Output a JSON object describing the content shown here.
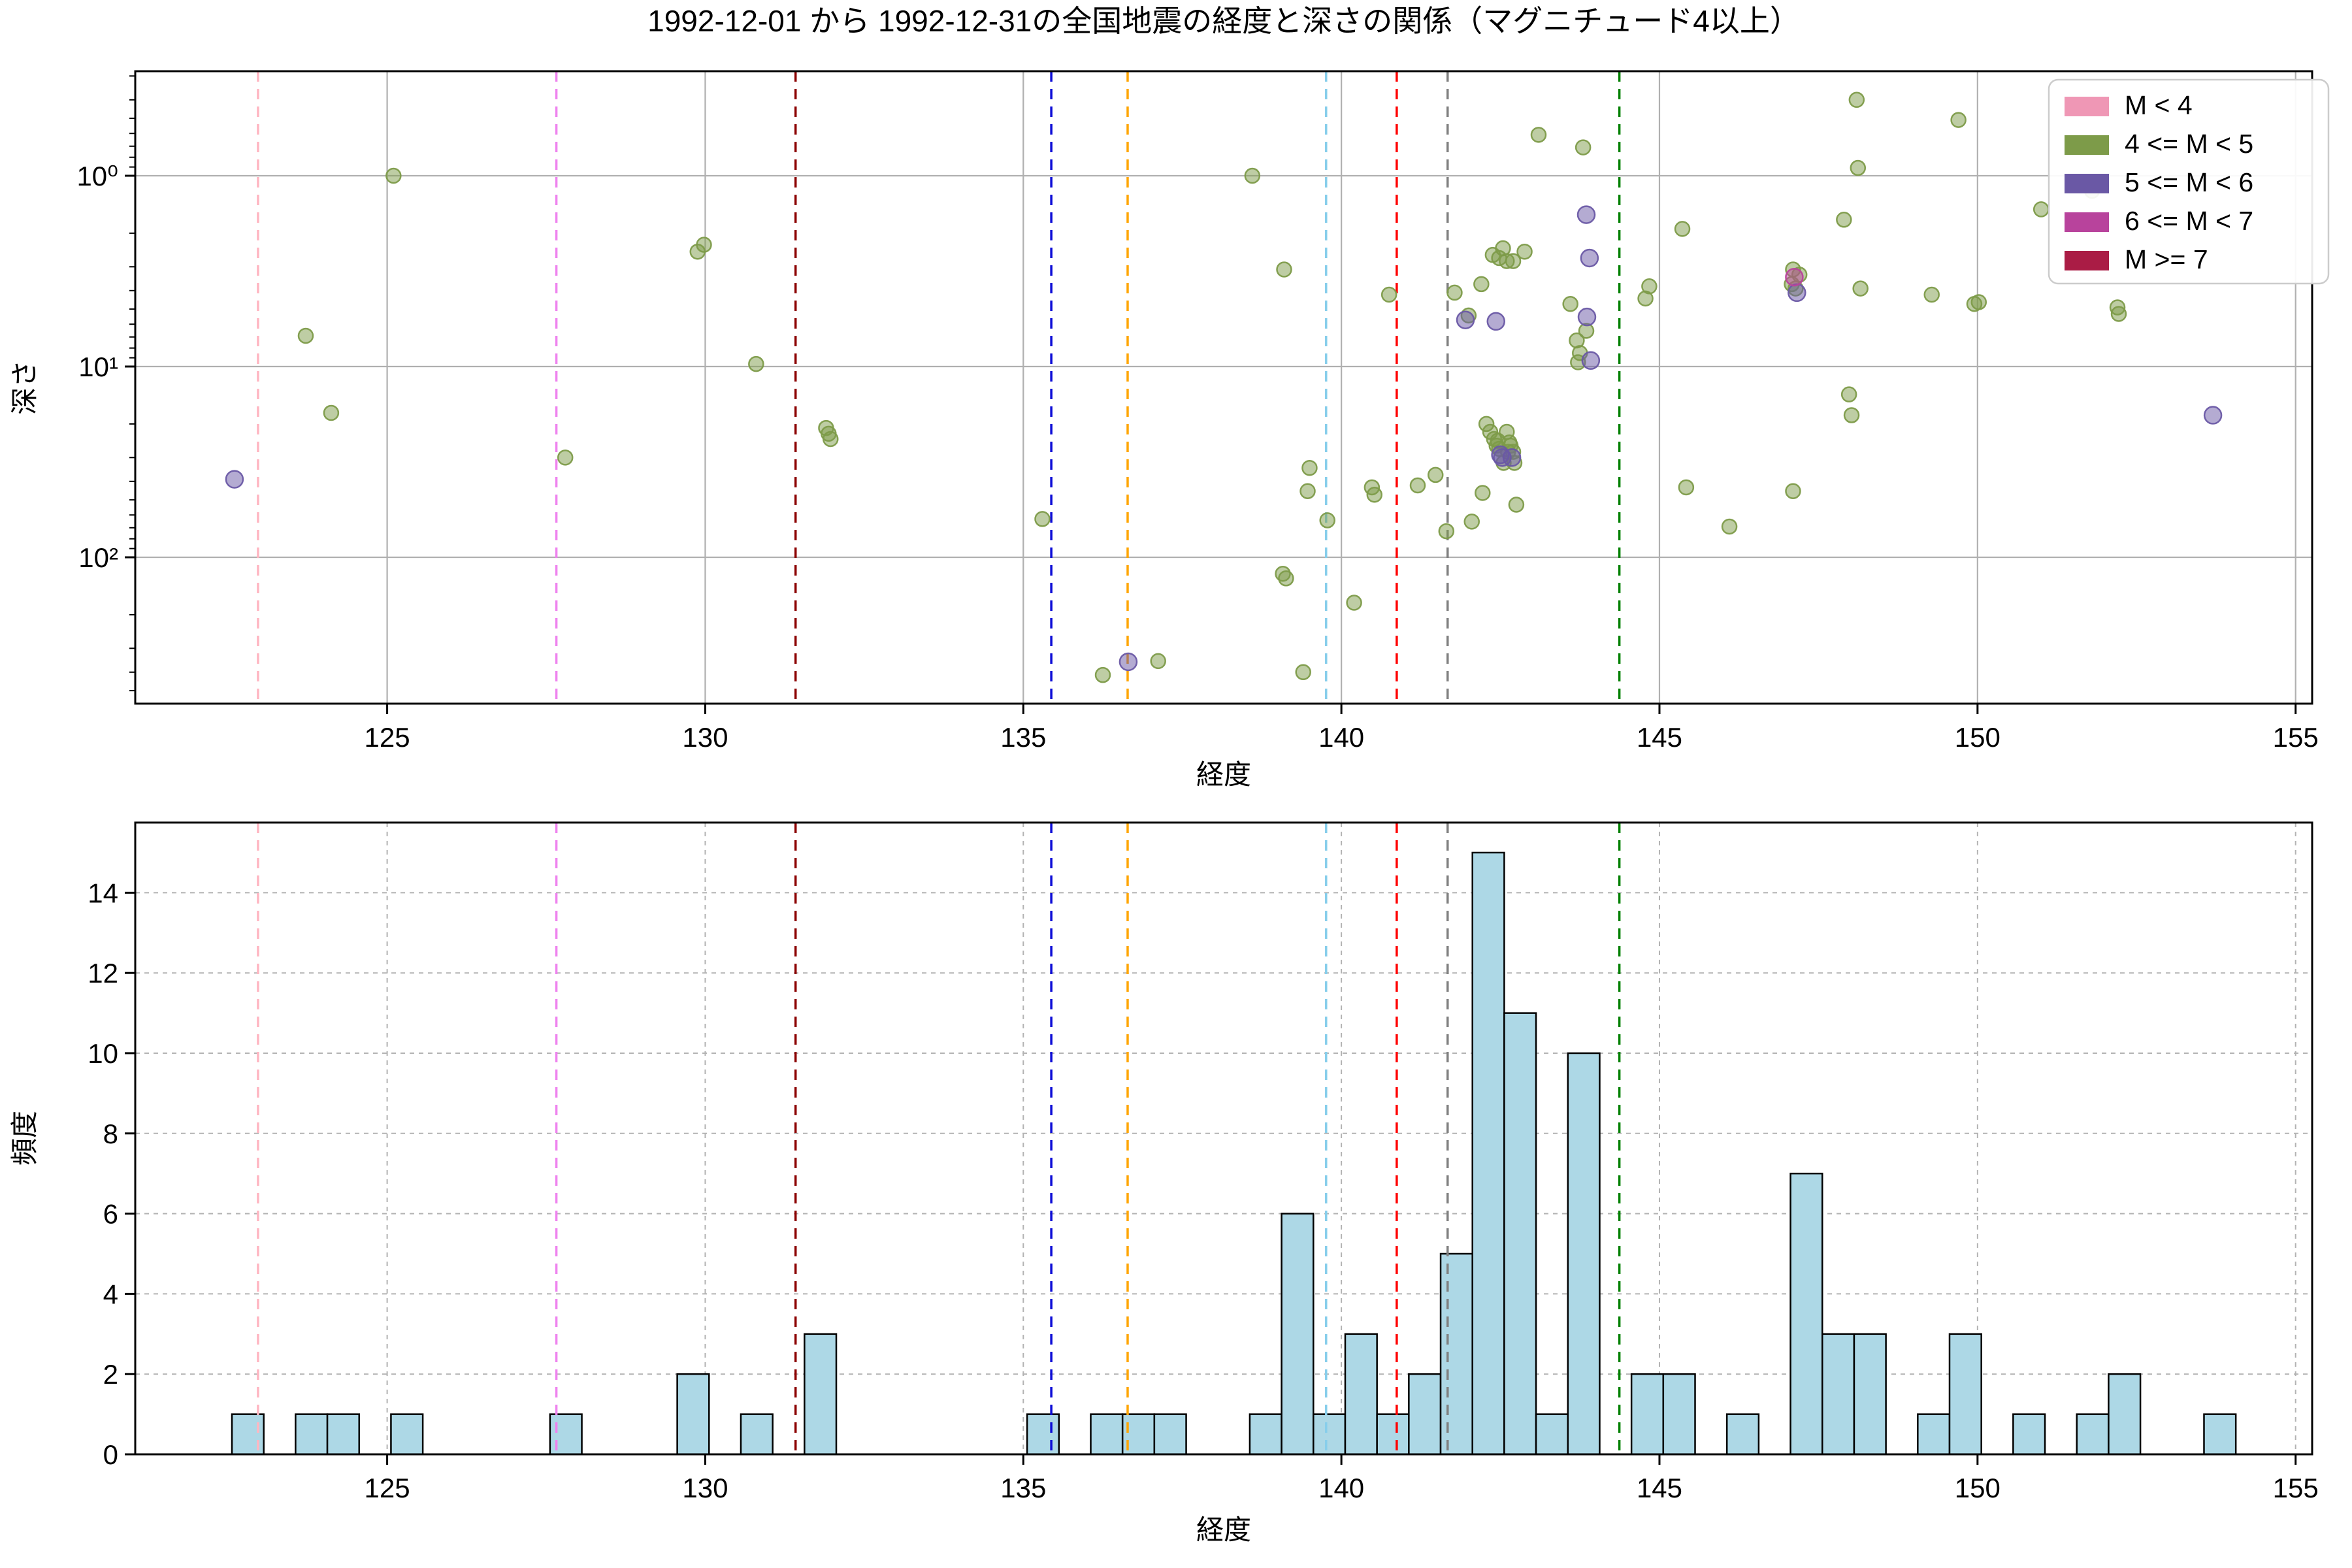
{
  "title": "1992-12-01 から 1992-12-31の全国地震の経度と深さの関係（マグニチュード4以上）",
  "axes": {
    "top": {
      "xlabel": "経度",
      "ylabel": "深さ",
      "xticks": [
        125,
        130,
        135,
        140,
        145,
        150,
        155
      ],
      "ytick_labels": [
        "10⁰",
        "10¹",
        "10²"
      ],
      "ytick_values": [
        1,
        10,
        100
      ],
      "xlim": [
        121.04,
        155.26
      ],
      "ylim_depth": [
        0.283,
        585
      ],
      "yscale": "log-inverted",
      "grid": "solid"
    },
    "bottom": {
      "xlabel": "経度",
      "ylabel": "頻度",
      "xticks": [
        125,
        130,
        135,
        140,
        145,
        150,
        155
      ],
      "yticks": [
        0,
        2,
        4,
        6,
        8,
        10,
        12,
        14
      ],
      "ylim": [
        0,
        15.75
      ],
      "grid": "dashed"
    }
  },
  "legend": {
    "entries": [
      {
        "label": "M < 4",
        "color": "#ef97b5"
      },
      {
        "label": "4 <= M < 5",
        "color": "#7d9b49"
      },
      {
        "label": "5 <= M < 6",
        "color": "#6a58a5"
      },
      {
        "label": "6 <= M < 7",
        "color": "#b8439c"
      },
      {
        "label": "M >= 7",
        "color": "#aa1c45"
      }
    ]
  },
  "vlines": [
    {
      "lon": 122.97,
      "color": "#ffb6c1"
    },
    {
      "lon": 127.66,
      "color": "#ee82ee"
    },
    {
      "lon": 131.42,
      "color": "#8b0000"
    },
    {
      "lon": 135.44,
      "color": "#0b0bd6"
    },
    {
      "lon": 136.64,
      "color": "#ffa500"
    },
    {
      "lon": 139.76,
      "color": "#87ceeb"
    },
    {
      "lon": 140.87,
      "color": "#ff0000"
    },
    {
      "lon": 141.67,
      "color": "#7f7f7f"
    },
    {
      "lon": 144.37,
      "color": "#008000"
    }
  ],
  "chart_data": [
    {
      "type": "scatter",
      "title": "1992-12-01 から 1992-12-31の全国地震の経度と深さの関係（マグニチュード4以上）",
      "xlabel": "経度",
      "ylabel": "深さ",
      "xlim": [
        121.04,
        155.26
      ],
      "ylim": [
        0.283,
        585
      ],
      "series": [
        {
          "name": "M < 4",
          "color": "#ef97b5",
          "r": 11,
          "points": []
        },
        {
          "name": "4 <= M < 5",
          "color": "#7d9b49",
          "r": 11,
          "points": [
            [
              123.72,
              6.9
            ],
            [
              124.12,
              17.5
            ],
            [
              125.1,
              1.0
            ],
            [
              127.8,
              30
            ],
            [
              129.88,
              2.5
            ],
            [
              129.98,
              2.3
            ],
            [
              130.8,
              9.7
            ],
            [
              131.9,
              21
            ],
            [
              131.94,
              22.5
            ],
            [
              131.97,
              24
            ],
            [
              135.3,
              63
            ],
            [
              136.25,
              414
            ],
            [
              137.12,
              350
            ],
            [
              138.6,
              1.0
            ],
            [
              139.1,
              3.1
            ],
            [
              139.08,
              122
            ],
            [
              139.13,
              129
            ],
            [
              139.4,
              400
            ],
            [
              139.47,
              45
            ],
            [
              139.5,
              34
            ],
            [
              139.78,
              64
            ],
            [
              140.2,
              173
            ],
            [
              140.48,
              43
            ],
            [
              140.52,
              47
            ],
            [
              140.75,
              4.2
            ],
            [
              141.2,
              42
            ],
            [
              141.48,
              37
            ],
            [
              141.65,
              73
            ],
            [
              141.78,
              4.1
            ],
            [
              142.0,
              5.4
            ],
            [
              142.05,
              65
            ],
            [
              142.2,
              3.7
            ],
            [
              142.22,
              46
            ],
            [
              142.28,
              20
            ],
            [
              142.34,
              22
            ],
            [
              142.4,
              24
            ],
            [
              142.44,
              26
            ],
            [
              142.46,
              24.5
            ],
            [
              142.48,
              27
            ],
            [
              142.55,
              32
            ],
            [
              142.38,
              2.6
            ],
            [
              142.48,
              2.7
            ],
            [
              142.54,
              2.4
            ],
            [
              142.6,
              2.8
            ],
            [
              142.7,
              2.8
            ],
            [
              142.88,
              2.5
            ],
            [
              142.6,
              22
            ],
            [
              142.62,
              28
            ],
            [
              142.64,
              25
            ],
            [
              142.66,
              26
            ],
            [
              142.7,
              28
            ],
            [
              142.72,
              32
            ],
            [
              142.75,
              53
            ],
            [
              143.1,
              0.61
            ],
            [
              143.6,
              4.7
            ],
            [
              143.7,
              7.3
            ],
            [
              143.72,
              9.5
            ],
            [
              143.75,
              8.5
            ],
            [
              143.8,
              0.71
            ],
            [
              143.85,
              6.5
            ],
            [
              144.78,
              4.4
            ],
            [
              144.84,
              3.8
            ],
            [
              145.36,
              1.9
            ],
            [
              145.42,
              43
            ],
            [
              146.1,
              69
            ],
            [
              147.08,
              3.7
            ],
            [
              147.1,
              3.1
            ],
            [
              147.1,
              45
            ],
            [
              147.14,
              3.9
            ],
            [
              147.2,
              3.3
            ],
            [
              147.9,
              1.7
            ],
            [
              147.98,
              14
            ],
            [
              148.02,
              18
            ],
            [
              148.1,
              0.4
            ],
            [
              148.12,
              0.91
            ],
            [
              148.16,
              3.9
            ],
            [
              149.28,
              4.2
            ],
            [
              149.7,
              0.51
            ],
            [
              149.95,
              4.7
            ],
            [
              150.02,
              4.6
            ],
            [
              151.0,
              1.5
            ],
            [
              151.8,
              1.2
            ],
            [
              152.2,
              4.9
            ],
            [
              152.22,
              5.3
            ]
          ]
        },
        {
          "name": "5 <= M < 6",
          "color": "#6a58a5",
          "r": 13,
          "points": [
            [
              122.6,
              39
            ],
            [
              136.65,
              353
            ],
            [
              141.95,
              5.7
            ],
            [
              142.43,
              5.8
            ],
            [
              142.5,
              29
            ],
            [
              142.53,
              30
            ],
            [
              142.68,
              30
            ],
            [
              143.85,
              1.6
            ],
            [
              143.9,
              2.7
            ],
            [
              143.86,
              5.5
            ],
            [
              143.92,
              9.3
            ],
            [
              147.16,
              4.1
            ],
            [
              153.7,
              18
            ]
          ]
        },
        {
          "name": "6 <= M < 7",
          "color": "#b8439c",
          "r": 13,
          "points": [
            [
              147.12,
              3.4
            ]
          ]
        },
        {
          "name": "M >= 7",
          "color": "#aa1c45",
          "r": 13,
          "points": []
        }
      ]
    },
    {
      "type": "bar",
      "xlabel": "経度",
      "ylabel": "頻度",
      "bin_start": 122.56,
      "bin_width": 0.5,
      "color": "#add8e6",
      "heights": [
        1,
        0,
        1,
        1,
        0,
        1,
        0,
        0,
        0,
        0,
        1,
        0,
        0,
        0,
        2,
        0,
        1,
        0,
        3,
        0,
        0,
        0,
        0,
        0,
        0,
        1,
        0,
        1,
        1,
        1,
        0,
        0,
        1,
        6,
        1,
        3,
        1,
        2,
        5,
        15,
        11,
        1,
        10,
        0,
        2,
        2,
        0,
        1,
        0,
        7,
        3,
        3,
        0,
        1,
        3,
        0,
        1,
        0,
        1,
        2,
        0,
        0,
        1
      ]
    }
  ]
}
